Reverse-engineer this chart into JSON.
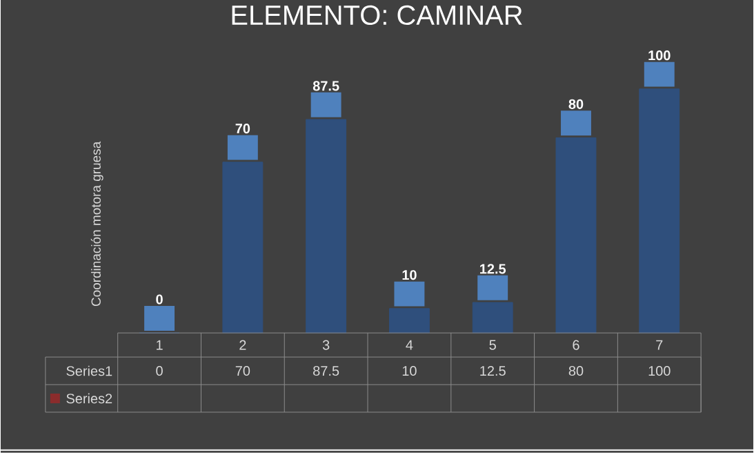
{
  "chart_data": {
    "type": "bar",
    "title": "ELEMENTO: CAMINAR",
    "ylabel": "Coordinación motora gruesa",
    "categories": [
      "1",
      "2",
      "3",
      "4",
      "5",
      "6",
      "7"
    ],
    "series": [
      {
        "name": "Series1",
        "color": "#2f4f7c",
        "values": [
          0,
          70,
          87.5,
          10,
          12.5,
          80,
          100
        ],
        "value_labels": [
          "0",
          "70",
          "87.5",
          "10",
          "12.5",
          "80",
          "100"
        ]
      },
      {
        "name": "Series2",
        "color": "#8b2c2c",
        "values": [
          null,
          null,
          null,
          null,
          null,
          null,
          null
        ]
      }
    ],
    "data_labels": true,
    "legend": "bottom left"
  }
}
